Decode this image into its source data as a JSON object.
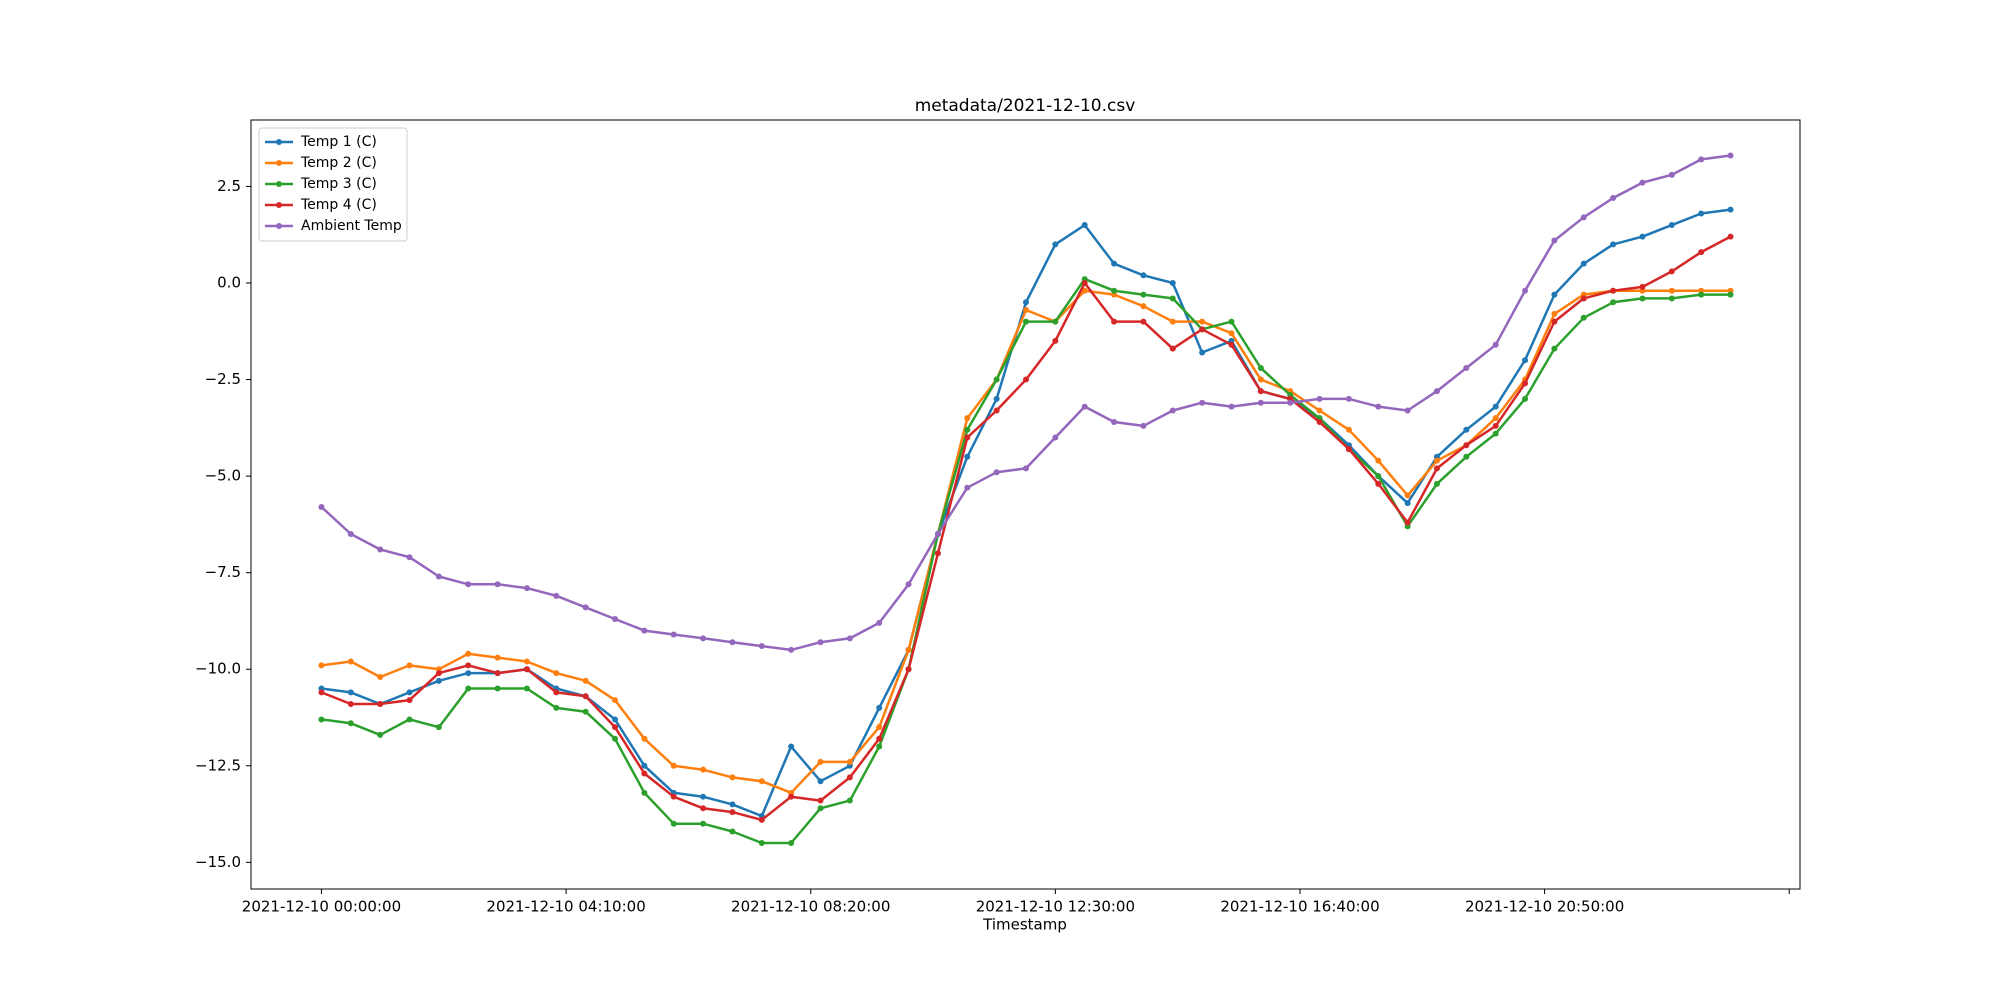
{
  "chart_data": {
    "type": "line",
    "title": "metadata/2021-12-10.csv",
    "xlabel": "Timestamp",
    "x": [
      0,
      30,
      60,
      90,
      120,
      150,
      180,
      210,
      240,
      270,
      300,
      330,
      360,
      390,
      420,
      450,
      480,
      510,
      540,
      570,
      600,
      630,
      660,
      690,
      720,
      750,
      780,
      810,
      840,
      870,
      900,
      930,
      960,
      990,
      1020,
      1050,
      1080,
      1110,
      1140,
      1170,
      1200,
      1230,
      1260,
      1290,
      1320,
      1350,
      1380,
      1410,
      1440
    ],
    "xlim": [
      -72,
      1511
    ],
    "xticks": [
      {
        "value": 0,
        "label": "2021-12-10 00:00:00"
      },
      {
        "value": 250,
        "label": "2021-12-10 04:10:00"
      },
      {
        "value": 500,
        "label": "2021-12-10 08:20:00"
      },
      {
        "value": 750,
        "label": "2021-12-10 12:30:00"
      },
      {
        "value": 1000,
        "label": "2021-12-10 16:40:00"
      },
      {
        "value": 1250,
        "label": "2021-12-10 20:50:00"
      },
      {
        "value": 1500,
        "label": null
      }
    ],
    "ylim": [
      -15.69,
      4.22
    ],
    "yticks": [
      {
        "value": 2.5,
        "label": "2.5"
      },
      {
        "value": 0,
        "label": "0.0"
      },
      {
        "value": -2.5,
        "label": "−2.5"
      },
      {
        "value": -5,
        "label": "−5.0"
      },
      {
        "value": -7.5,
        "label": "−7.5"
      },
      {
        "value": -10,
        "label": "−10.0"
      },
      {
        "value": -12.5,
        "label": "−12.5"
      },
      {
        "value": -15,
        "label": "−15.0"
      }
    ],
    "legend": "upper left",
    "series": [
      {
        "name": "Temp 1 (C)",
        "color": "#1f77b4",
        "values": [
          -10.5,
          -10.6,
          -10.9,
          -10.6,
          -10.3,
          -10.1,
          -10.1,
          -10.0,
          -10.5,
          -10.7,
          -11.3,
          -12.5,
          -13.2,
          -13.3,
          -13.5,
          -13.8,
          -12.0,
          -12.9,
          -12.5,
          -11.0,
          -9.5,
          -6.5,
          -4.5,
          -3.0,
          -0.5,
          1.0,
          1.5,
          0.5,
          0.2,
          0.0,
          -1.8,
          -1.5,
          -2.8,
          -3.0,
          -3.5,
          -4.2,
          -5.0,
          -5.7,
          -4.5,
          -3.8,
          -3.2,
          -2.0,
          -0.3,
          0.5,
          1.0,
          1.2,
          1.5,
          1.8,
          1.9
        ]
      },
      {
        "name": "Temp 2 (C)",
        "color": "#ff7f0e",
        "values": [
          -9.9,
          -9.8,
          -10.2,
          -9.9,
          -10.0,
          -9.6,
          -9.7,
          -9.8,
          -10.1,
          -10.3,
          -10.8,
          -11.8,
          -12.5,
          -12.6,
          -12.8,
          -12.9,
          -13.2,
          -12.4,
          -12.4,
          -11.5,
          -9.5,
          -6.5,
          -3.5,
          -2.5,
          -0.7,
          -1.0,
          -0.2,
          -0.3,
          -0.6,
          -1.0,
          -1.0,
          -1.3,
          -2.5,
          -2.8,
          -3.3,
          -3.8,
          -4.6,
          -5.5,
          -4.6,
          -4.2,
          -3.5,
          -2.5,
          -0.8,
          -0.3,
          -0.2,
          -0.2,
          -0.2,
          -0.2,
          -0.2
        ]
      },
      {
        "name": "Temp 3 (C)",
        "color": "#2ca02c",
        "values": [
          -11.3,
          -11.4,
          -11.7,
          -11.3,
          -11.5,
          -10.5,
          -10.5,
          -10.5,
          -11.0,
          -11.1,
          -11.8,
          -13.2,
          -14.0,
          -14.0,
          -14.2,
          -14.5,
          -14.5,
          -13.6,
          -13.4,
          -12.0,
          -10.0,
          -6.5,
          -3.8,
          -2.5,
          -1.0,
          -1.0,
          0.1,
          -0.2,
          -0.3,
          -0.4,
          -1.2,
          -1.0,
          -2.2,
          -2.9,
          -3.5,
          -4.3,
          -5.0,
          -6.3,
          -5.2,
          -4.5,
          -3.9,
          -3.0,
          -1.7,
          -0.9,
          -0.5,
          -0.4,
          -0.4,
          -0.3,
          -0.3
        ]
      },
      {
        "name": "Temp 4 (C)",
        "color": "#d62728",
        "values": [
          -10.6,
          -10.9,
          -10.9,
          -10.8,
          -10.1,
          -9.9,
          -10.1,
          -10.0,
          -10.6,
          -10.7,
          -11.5,
          -12.7,
          -13.3,
          -13.6,
          -13.7,
          -13.9,
          -13.3,
          -13.4,
          -12.8,
          -11.8,
          -10.0,
          -7.0,
          -4.0,
          -3.3,
          -2.5,
          -1.5,
          0.0,
          -1.0,
          -1.0,
          -1.7,
          -1.2,
          -1.6,
          -2.8,
          -3.0,
          -3.6,
          -4.3,
          -5.2,
          -6.2,
          -4.8,
          -4.2,
          -3.7,
          -2.6,
          -1.0,
          -0.4,
          -0.2,
          -0.1,
          0.3,
          0.8,
          1.2
        ]
      },
      {
        "name": "Ambient Temp",
        "color": "#9467bd",
        "values": [
          -5.8,
          -6.5,
          -6.9,
          -7.1,
          -7.6,
          -7.8,
          -7.8,
          -7.9,
          -8.1,
          -8.4,
          -8.7,
          -9.0,
          -9.1,
          -9.2,
          -9.3,
          -9.4,
          -9.5,
          -9.3,
          -9.2,
          -8.8,
          -7.8,
          -6.5,
          -5.3,
          -4.9,
          -4.8,
          -4.0,
          -3.2,
          -3.6,
          -3.7,
          -3.3,
          -3.1,
          -3.2,
          -3.1,
          -3.1,
          -3.0,
          -3.0,
          -3.2,
          -3.3,
          -2.8,
          -2.2,
          -1.6,
          -0.2,
          1.1,
          1.7,
          2.2,
          2.6,
          2.8,
          3.2,
          3.3
        ]
      }
    ]
  }
}
